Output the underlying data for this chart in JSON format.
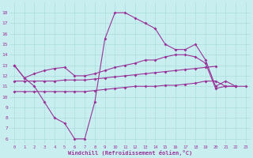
{
  "x": [
    0,
    1,
    2,
    3,
    4,
    5,
    6,
    7,
    8,
    9,
    10,
    11,
    12,
    13,
    14,
    15,
    16,
    17,
    18,
    19,
    20,
    21,
    22,
    23
  ],
  "line1": [
    13,
    11.8,
    11.0,
    9.5,
    8.0,
    7.5,
    6.0,
    6.0,
    9.5,
    15.5,
    18.0,
    18.0,
    17.5,
    17.0,
    16.5,
    15.0,
    14.5,
    14.5,
    15.0,
    13.5,
    11.0,
    11.5,
    11.0,
    null
  ],
  "line2": [
    13,
    11.8,
    12.2,
    12.5,
    12.7,
    12.8,
    12.0,
    12.0,
    12.2,
    12.5,
    12.8,
    13.0,
    13.2,
    13.5,
    13.5,
    13.8,
    14.0,
    14.0,
    13.8,
    13.2,
    10.8,
    11.0,
    11.0,
    null
  ],
  "line3": [
    11.5,
    11.5,
    11.5,
    11.5,
    11.5,
    11.6,
    11.6,
    11.6,
    11.7,
    11.8,
    11.9,
    12.0,
    12.1,
    12.2,
    12.3,
    12.4,
    12.5,
    12.6,
    12.7,
    12.8,
    12.9,
    null,
    null,
    null
  ],
  "line4": [
    10.5,
    10.5,
    10.5,
    10.5,
    10.5,
    10.5,
    10.5,
    10.5,
    10.6,
    10.7,
    10.8,
    10.9,
    11.0,
    11.0,
    11.0,
    11.1,
    11.1,
    11.2,
    11.3,
    11.5,
    11.5,
    11.0,
    11.0,
    11.0
  ],
  "line_color": "#993399",
  "bg_color": "#c8eef0",
  "grid_color": "#aadddd",
  "xlabel": "Windchill (Refroidissement éolien,°C)",
  "xlim_min": -0.5,
  "xlim_max": 23.5,
  "ylim_min": 5.5,
  "ylim_max": 19.0,
  "yticks": [
    6,
    7,
    8,
    9,
    10,
    11,
    12,
    13,
    14,
    15,
    16,
    17,
    18
  ],
  "xticks": [
    0,
    1,
    2,
    3,
    4,
    5,
    6,
    7,
    8,
    9,
    10,
    11,
    12,
    13,
    14,
    15,
    16,
    17,
    18,
    19,
    20,
    21,
    22,
    23
  ]
}
